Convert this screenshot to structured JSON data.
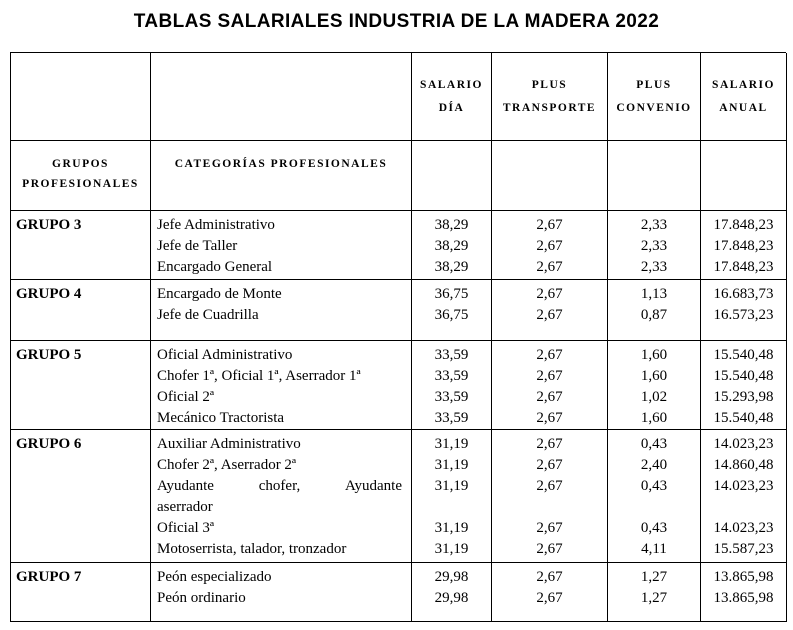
{
  "title": "TABLAS SALARIALES INDUSTRIA DE LA MADERA 2022",
  "colors": {
    "text": "#000000",
    "border": "#000000",
    "background": "#ffffff"
  },
  "table": {
    "header": {
      "group": "GRUPOS\nPROFESIONALES",
      "category": "CATEGORÍAS PROFESIONALES",
      "salario_dia": "SALARIO\nDÍA",
      "plus_transporte": "PLUS\nTRANSPORTE",
      "plus_convenio": "PLUS\nCONVENIO",
      "salario_anual": "SALARIO\nANUAL"
    },
    "groups": [
      {
        "name": "GRUPO 3",
        "rows": [
          {
            "category": "Jefe Administrativo",
            "salario_dia": "38,29",
            "plus_transporte": "2,67",
            "plus_convenio": "2,33",
            "salario_anual": "17.848,23"
          },
          {
            "category": "Jefe de Taller",
            "salario_dia": "38,29",
            "plus_transporte": "2,67",
            "plus_convenio": "2,33",
            "salario_anual": "17.848,23"
          },
          {
            "category": "Encargado General",
            "salario_dia": "38,29",
            "plus_transporte": "2,67",
            "plus_convenio": "2,33",
            "salario_anual": "17.848,23"
          }
        ]
      },
      {
        "name": "GRUPO 4",
        "rows": [
          {
            "category": "Encargado de Monte",
            "salario_dia": "36,75",
            "plus_transporte": "2,67",
            "plus_convenio": "1,13",
            "salario_anual": "16.683,73"
          },
          {
            "category": "Jefe de Cuadrilla",
            "salario_dia": "36,75",
            "plus_transporte": "2,67",
            "plus_convenio": "0,87",
            "salario_anual": "16.573,23"
          }
        ]
      },
      {
        "name": "GRUPO 5",
        "rows": [
          {
            "category": "Oficial Administrativo",
            "salario_dia": "33,59",
            "plus_transporte": "2,67",
            "plus_convenio": "1,60",
            "salario_anual": "15.540,48"
          },
          {
            "category": "Chofer 1ª, Oficial 1ª, Aserrador 1ª",
            "salario_dia": "33,59",
            "plus_transporte": "2,67",
            "plus_convenio": "1,60",
            "salario_anual": "15.540,48"
          },
          {
            "category": "Oficial 2ª",
            "salario_dia": "33,59",
            "plus_transporte": "2,67",
            "plus_convenio": "1,02",
            "salario_anual": "15.293,98"
          },
          {
            "category": "Mecánico Tractorista",
            "salario_dia": "33,59",
            "plus_transporte": "2,67",
            "plus_convenio": "1,60",
            "salario_anual": "15.540,48"
          }
        ]
      },
      {
        "name": "GRUPO 6",
        "rows": [
          {
            "category": "Auxiliar Administrativo",
            "salario_dia": "31,19",
            "plus_transporte": "2,67",
            "plus_convenio": "0,43",
            "salario_anual": "14.023,23"
          },
          {
            "category": "Chofer 2ª, Aserrador 2ª",
            "salario_dia": "31,19",
            "plus_transporte": "2,67",
            "plus_convenio": "2,40",
            "salario_anual": "14.860,48"
          },
          {
            "category": "Ayudante chofer, Ayudante aserrador",
            "category_lines": [
              "Ayudante chofer, Ayudante",
              "aserrador"
            ],
            "salario_dia": "31,19",
            "plus_transporte": "2,67",
            "plus_convenio": "0,43",
            "salario_anual": "14.023,23"
          },
          {
            "category": "Oficial 3ª",
            "salario_dia": "31,19",
            "plus_transporte": "2,67",
            "plus_convenio": "0,43",
            "salario_anual": "14.023,23"
          },
          {
            "category": "Motoserrista, talador, tronzador",
            "salario_dia": "31,19",
            "plus_transporte": "2,67",
            "plus_convenio": "4,11",
            "salario_anual": "15.587,23"
          }
        ]
      },
      {
        "name": "GRUPO 7",
        "rows": [
          {
            "category": "Peón especializado",
            "salario_dia": "29,98",
            "plus_transporte": "2,67",
            "plus_convenio": "1,27",
            "salario_anual": "13.865,98"
          },
          {
            "category": "Peón ordinario",
            "salario_dia": "29,98",
            "plus_transporte": "2,67",
            "plus_convenio": "1,27",
            "salario_anual": "13.865,98"
          }
        ]
      }
    ]
  }
}
